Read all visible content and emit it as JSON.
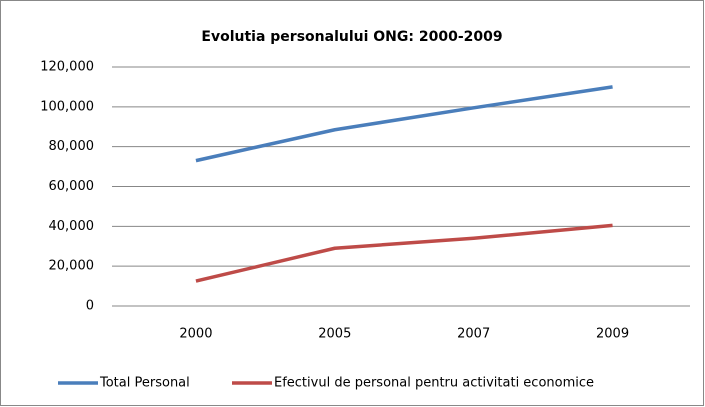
{
  "chart_data": {
    "type": "line",
    "title": "Evolutia personalului ONG: 2000-2009",
    "categories": [
      "2000",
      "2005",
      "2007",
      "2009"
    ],
    "series": [
      {
        "name": "Total Personal",
        "color": "#4a7ebb",
        "values": [
          73000,
          88500,
          99500,
          110000
        ]
      },
      {
        "name": "Efectivul de personal pentru activitati economice",
        "color": "#be4b48",
        "values": [
          12500,
          29000,
          34000,
          40500
        ]
      }
    ],
    "ylim": [
      0,
      120000
    ],
    "yticks": [
      0,
      {
        "value": 20000,
        "label": "20,000"
      },
      {
        "value": 40000,
        "label": "40,000"
      },
      {
        "value": 60000,
        "label": "60,000"
      },
      {
        "value": 80000,
        "label": "80,000"
      },
      {
        "value": 100000,
        "label": "100,000"
      },
      {
        "value": 120000,
        "label": "120,000"
      }
    ],
    "grid": true,
    "legend": "bottom"
  }
}
